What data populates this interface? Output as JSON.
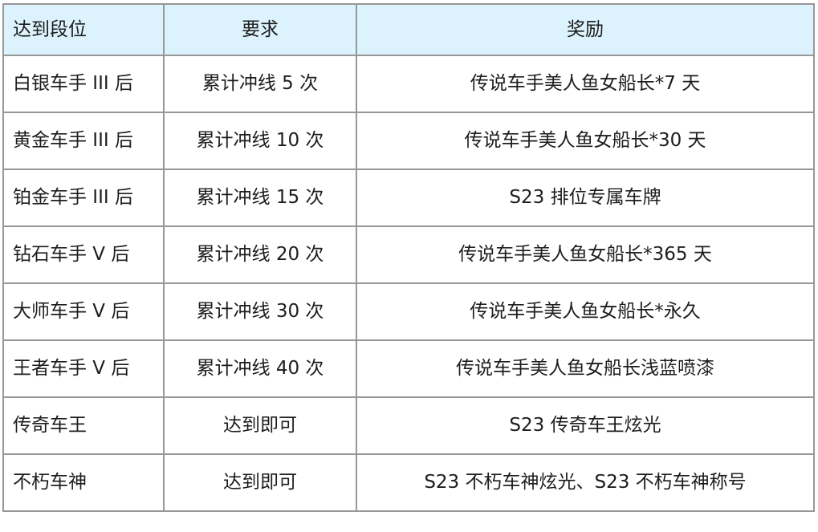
{
  "table": {
    "headers": [
      {
        "label": "达到段位"
      },
      {
        "label": "要求"
      },
      {
        "label": "奖励"
      }
    ],
    "rows": [
      {
        "rank": "白银车手 III 后",
        "requirement": "累计冲线 5 次",
        "reward": "传说车手美人鱼女船长*7 天"
      },
      {
        "rank": "黄金车手 III 后",
        "requirement": "累计冲线 10 次",
        "reward": "传说车手美人鱼女船长*30 天"
      },
      {
        "rank": "铂金车手 III 后",
        "requirement": "累计冲线 15 次",
        "reward": "S23 排位专属车牌"
      },
      {
        "rank": "钻石车手 V 后",
        "requirement": "累计冲线 20 次",
        "reward": "传说车手美人鱼女船长*365 天"
      },
      {
        "rank": "大师车手 V 后",
        "requirement": "累计冲线 30 次",
        "reward": "传说车手美人鱼女船长*永久"
      },
      {
        "rank": "王者车手 V 后",
        "requirement": "累计冲线 40 次",
        "reward": "传说车手美人鱼女船长浅蓝喷漆"
      },
      {
        "rank": "传奇车王",
        "requirement": "达到即可",
        "reward": "S23 传奇车王炫光"
      },
      {
        "rank": "不朽车神",
        "requirement": "达到即可",
        "reward": "S23 不朽车神炫光、S23 不朽车神称号"
      }
    ],
    "colors": {
      "header_background": "#dcf3fd",
      "border": "#979797",
      "text": "#1d1d1d"
    }
  }
}
